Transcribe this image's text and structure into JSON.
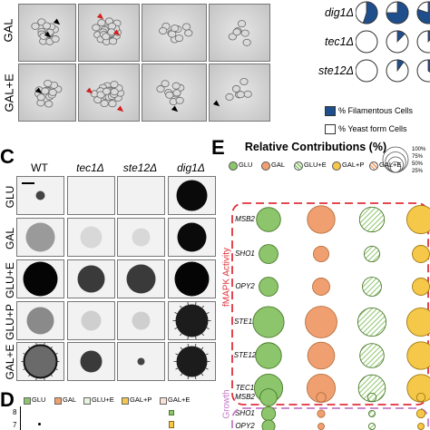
{
  "panelA": {
    "row_labels": [
      "GAL",
      "GAL+E"
    ]
  },
  "panelB": {
    "genotypes": [
      "dig1Δ",
      "tec1Δ",
      "ste12Δ"
    ],
    "pie_fractions": [
      [
        0.55,
        0.75,
        0.8
      ],
      [
        0.0,
        0.12,
        0.12
      ],
      [
        0.0,
        0.1,
        0.35
      ]
    ],
    "legend": [
      "% Filamentous Cells",
      "% Yeast form Cells"
    ],
    "fill_color": "#1f4e8c"
  },
  "panelC": {
    "letter": "C",
    "columns": [
      "WT",
      "tec1Δ",
      "ste12Δ",
      "dig1Δ"
    ],
    "rows": [
      "GLU",
      "GAL",
      "GLU+E",
      "GLU+P",
      "GAL+E"
    ]
  },
  "panelD": {
    "letter": "D",
    "legend": [
      "GLU",
      "GAL",
      "GLU+E",
      "GAL+P",
      "GAL+E"
    ],
    "y_ticks": [
      "8",
      "7"
    ]
  },
  "panelE": {
    "letter": "E",
    "title": "Relative Contributions (%)",
    "legend": [
      "GLU",
      "GAL",
      "GLU+E",
      "GAL+P",
      "GAL+E"
    ],
    "size_legend": [
      "100%",
      "75%",
      "50%",
      "25%"
    ],
    "group1_label": "fMAPK Activity",
    "group2_label": "Growth",
    "genes_group1": [
      "MSB2",
      "SHO1",
      "OPY2",
      "STE11",
      "STE12",
      "TEC1"
    ],
    "genes_group2": [
      "MSB2",
      "SHO1",
      "OPY2"
    ],
    "colors": {
      "GLU": "#8cc56b",
      "GAL": "#f0a070",
      "GLU+E": "#8cc56b",
      "GAL+P": "#f5c84a",
      "GAL+E": "#f0a070",
      "dash_red": "#e0303a",
      "dash_purple": "#c47ac8"
    },
    "bubble_sizes_group1": [
      [
        0.7,
        0.8,
        0.72,
        0.82,
        0.6
      ],
      [
        0.55,
        0.45,
        0.45,
        0.5,
        0.45
      ],
      [
        0.55,
        0.5,
        0.55,
        0.5,
        0.5
      ],
      [
        0.9,
        0.92,
        0.82,
        0.82,
        0.75
      ],
      [
        0.75,
        0.78,
        0.7,
        0.8,
        0.7
      ],
      [
        0.82,
        0.82,
        0.78,
        0.8,
        0.6
      ]
    ],
    "bubble_sizes_group2": [
      [
        0.8,
        0.45,
        0.4,
        0.4,
        0.4
      ],
      [
        0.65,
        0.35,
        0.3,
        0.4,
        0.3
      ],
      [
        0.6,
        0.3,
        0.3,
        0.3,
        0.3
      ]
    ]
  }
}
